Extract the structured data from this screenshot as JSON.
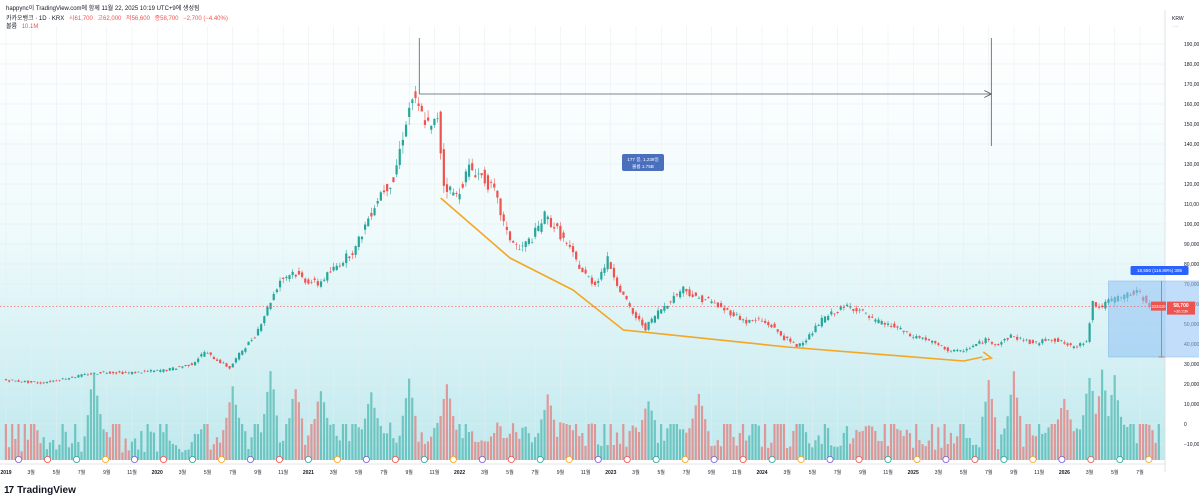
{
  "header": {
    "line1": "happync이 TradingView.com에 함께 11월 22, 2025 10:19 UTC+9에 생성됨",
    "symbol": "카카오뱅크 · 1D · KRX",
    "open": "시61,700",
    "high": "고62,000",
    "low": "저56,600",
    "close": "종58,700",
    "change": "−2,700 (−4.40%)",
    "volume_label": "볼륨",
    "volume_value": "10.1M"
  },
  "price_tag": {
    "ticker": "323410",
    "price": "58,700",
    "time": "+36:23h"
  },
  "measure_box": {
    "label": "18,550 (116.89%) 385"
  },
  "annotation": {
    "line1": "177 봉, 1,239일",
    "line2": "볼륨 1.75B"
  },
  "footer": {
    "brand": "TradingView"
  },
  "colors": {
    "up": "#26a69a",
    "down": "#ef5350",
    "trend": "#f5a623",
    "box": "#90c2f5",
    "label": "#4a6fbd"
  },
  "chart_data": {
    "type": "candlestick",
    "currency": "KRW",
    "y_ticks": [
      190000,
      180000,
      170000,
      160000,
      150000,
      140000,
      130000,
      120000,
      110000,
      100000,
      90000,
      80000,
      70000,
      60000,
      50000,
      40000,
      30000,
      20000,
      10000,
      0,
      -10000
    ],
    "y_tick_labels": [
      "190,000",
      "180,000",
      "170,000",
      "160,000",
      "150,000",
      "140,000",
      "130,000",
      "120,000",
      "110,000",
      "100,000",
      "90,000",
      "80,000",
      "70,000",
      "60,000",
      "50,000",
      "40,000",
      "30,000",
      "20,000",
      "10,000",
      "0",
      "−10,000"
    ],
    "ylim": [
      -18000,
      197000
    ],
    "x_labels": [
      "2019",
      "3월",
      "5월",
      "7월",
      "9월",
      "11월",
      "2020",
      "3월",
      "5월",
      "7월",
      "9월",
      "11월",
      "2021",
      "3월",
      "5월",
      "7월",
      "9월",
      "11월",
      "2022",
      "3월",
      "5월",
      "7월",
      "9월",
      "11월",
      "2023",
      "3월",
      "5월",
      "7월",
      "9월",
      "11월",
      "2024",
      "3월",
      "5월",
      "7월",
      "9월",
      "11월",
      "2025",
      "3월",
      "5월",
      "7월",
      "9월",
      "11월",
      "2026",
      "3월",
      "5월",
      "7월"
    ],
    "x_start": "2019-01",
    "price_path": [
      [
        0,
        22000
      ],
      [
        3,
        20500
      ],
      [
        6,
        24000
      ],
      [
        8,
        26000
      ],
      [
        10,
        25500
      ],
      [
        13,
        27000
      ],
      [
        15,
        30000
      ],
      [
        16,
        36000
      ],
      [
        17,
        32000
      ],
      [
        18,
        28000
      ],
      [
        19,
        37000
      ],
      [
        20,
        44000
      ],
      [
        21,
        58000
      ],
      [
        22,
        72000
      ],
      [
        23,
        76000
      ],
      [
        24,
        72000
      ],
      [
        25,
        70000
      ],
      [
        26,
        76000
      ],
      [
        27,
        82000
      ],
      [
        28,
        88000
      ],
      [
        29,
        103000
      ],
      [
        30,
        116000
      ],
      [
        31,
        122000
      ],
      [
        32,
        152000
      ],
      [
        32.5,
        163000
      ],
      [
        33,
        157000
      ],
      [
        34,
        147000
      ],
      [
        34.5,
        154000
      ],
      [
        35,
        120000
      ],
      [
        36,
        114000
      ],
      [
        37,
        128000
      ],
      [
        38,
        124000
      ],
      [
        39,
        116000
      ],
      [
        40,
        95000
      ],
      [
        41,
        87000
      ],
      [
        42,
        93000
      ],
      [
        43,
        104000
      ],
      [
        44,
        97000
      ],
      [
        45,
        87000
      ],
      [
        46,
        76000
      ],
      [
        47,
        70000
      ],
      [
        48,
        82000
      ],
      [
        49,
        67000
      ],
      [
        50,
        55000
      ],
      [
        51,
        48000
      ],
      [
        52,
        56000
      ],
      [
        53,
        62000
      ],
      [
        54,
        68000
      ],
      [
        55,
        63000
      ],
      [
        56,
        62000
      ],
      [
        57,
        58000
      ],
      [
        58,
        55000
      ],
      [
        59,
        51000
      ],
      [
        60,
        52000
      ],
      [
        61,
        49000
      ],
      [
        62,
        43000
      ],
      [
        63,
        39000
      ],
      [
        64,
        44000
      ],
      [
        65,
        52000
      ],
      [
        66,
        56000
      ],
      [
        67,
        59000
      ],
      [
        68,
        57000
      ],
      [
        69,
        52000
      ],
      [
        70,
        50000
      ],
      [
        71,
        48000
      ],
      [
        72,
        44000
      ],
      [
        73,
        43000
      ],
      [
        74,
        40000
      ],
      [
        75,
        37000
      ],
      [
        76,
        36000
      ],
      [
        77,
        39000
      ],
      [
        78,
        42000
      ],
      [
        79,
        40000
      ],
      [
        80,
        44000
      ],
      [
        81,
        42000
      ],
      [
        82,
        40000
      ],
      [
        83,
        43000
      ],
      [
        84,
        41000
      ],
      [
        85,
        38000
      ],
      [
        86,
        42000
      ],
      [
        86.5,
        61000
      ],
      [
        87,
        58000
      ],
      [
        88,
        62000
      ],
      [
        89,
        64000
      ],
      [
        90,
        66000
      ],
      [
        91,
        60000
      ],
      [
        91.5,
        58700
      ]
    ],
    "trend_line": [
      [
        34.5,
        113000
      ],
      [
        40,
        83000
      ],
      [
        45,
        67000
      ],
      [
        49,
        47000
      ],
      [
        62,
        38500
      ],
      [
        76,
        31500
      ],
      [
        77.5,
        33500
      ]
    ],
    "trend_arrow_tip": [
      78.2,
      33000
    ],
    "measure_lines": {
      "start_x": 32.8,
      "end_x": 78.2,
      "top": 193000,
      "left_bottom": 165000,
      "right_bottom": 139000,
      "arrow_y": 165000
    },
    "range_box": {
      "x_start": 87.5,
      "x_end": 95.6,
      "y_top": 71500,
      "y_bottom": 33500,
      "marker_x": 91.7
    },
    "volume_baseline": -18000,
    "volume_axis_max": 38000,
    "volume_spikes": [
      [
        7,
        31000
      ],
      [
        18,
        19000
      ],
      [
        21,
        30000
      ],
      [
        23,
        22000
      ],
      [
        25,
        20000
      ],
      [
        29,
        18000
      ],
      [
        32,
        28000
      ],
      [
        35,
        24000
      ],
      [
        43,
        16000
      ],
      [
        51,
        14000
      ],
      [
        55,
        19000
      ],
      [
        78,
        22000
      ],
      [
        80,
        30000
      ],
      [
        84,
        16000
      ],
      [
        86,
        30000
      ],
      [
        87,
        31000
      ],
      [
        88,
        25000
      ]
    ]
  }
}
